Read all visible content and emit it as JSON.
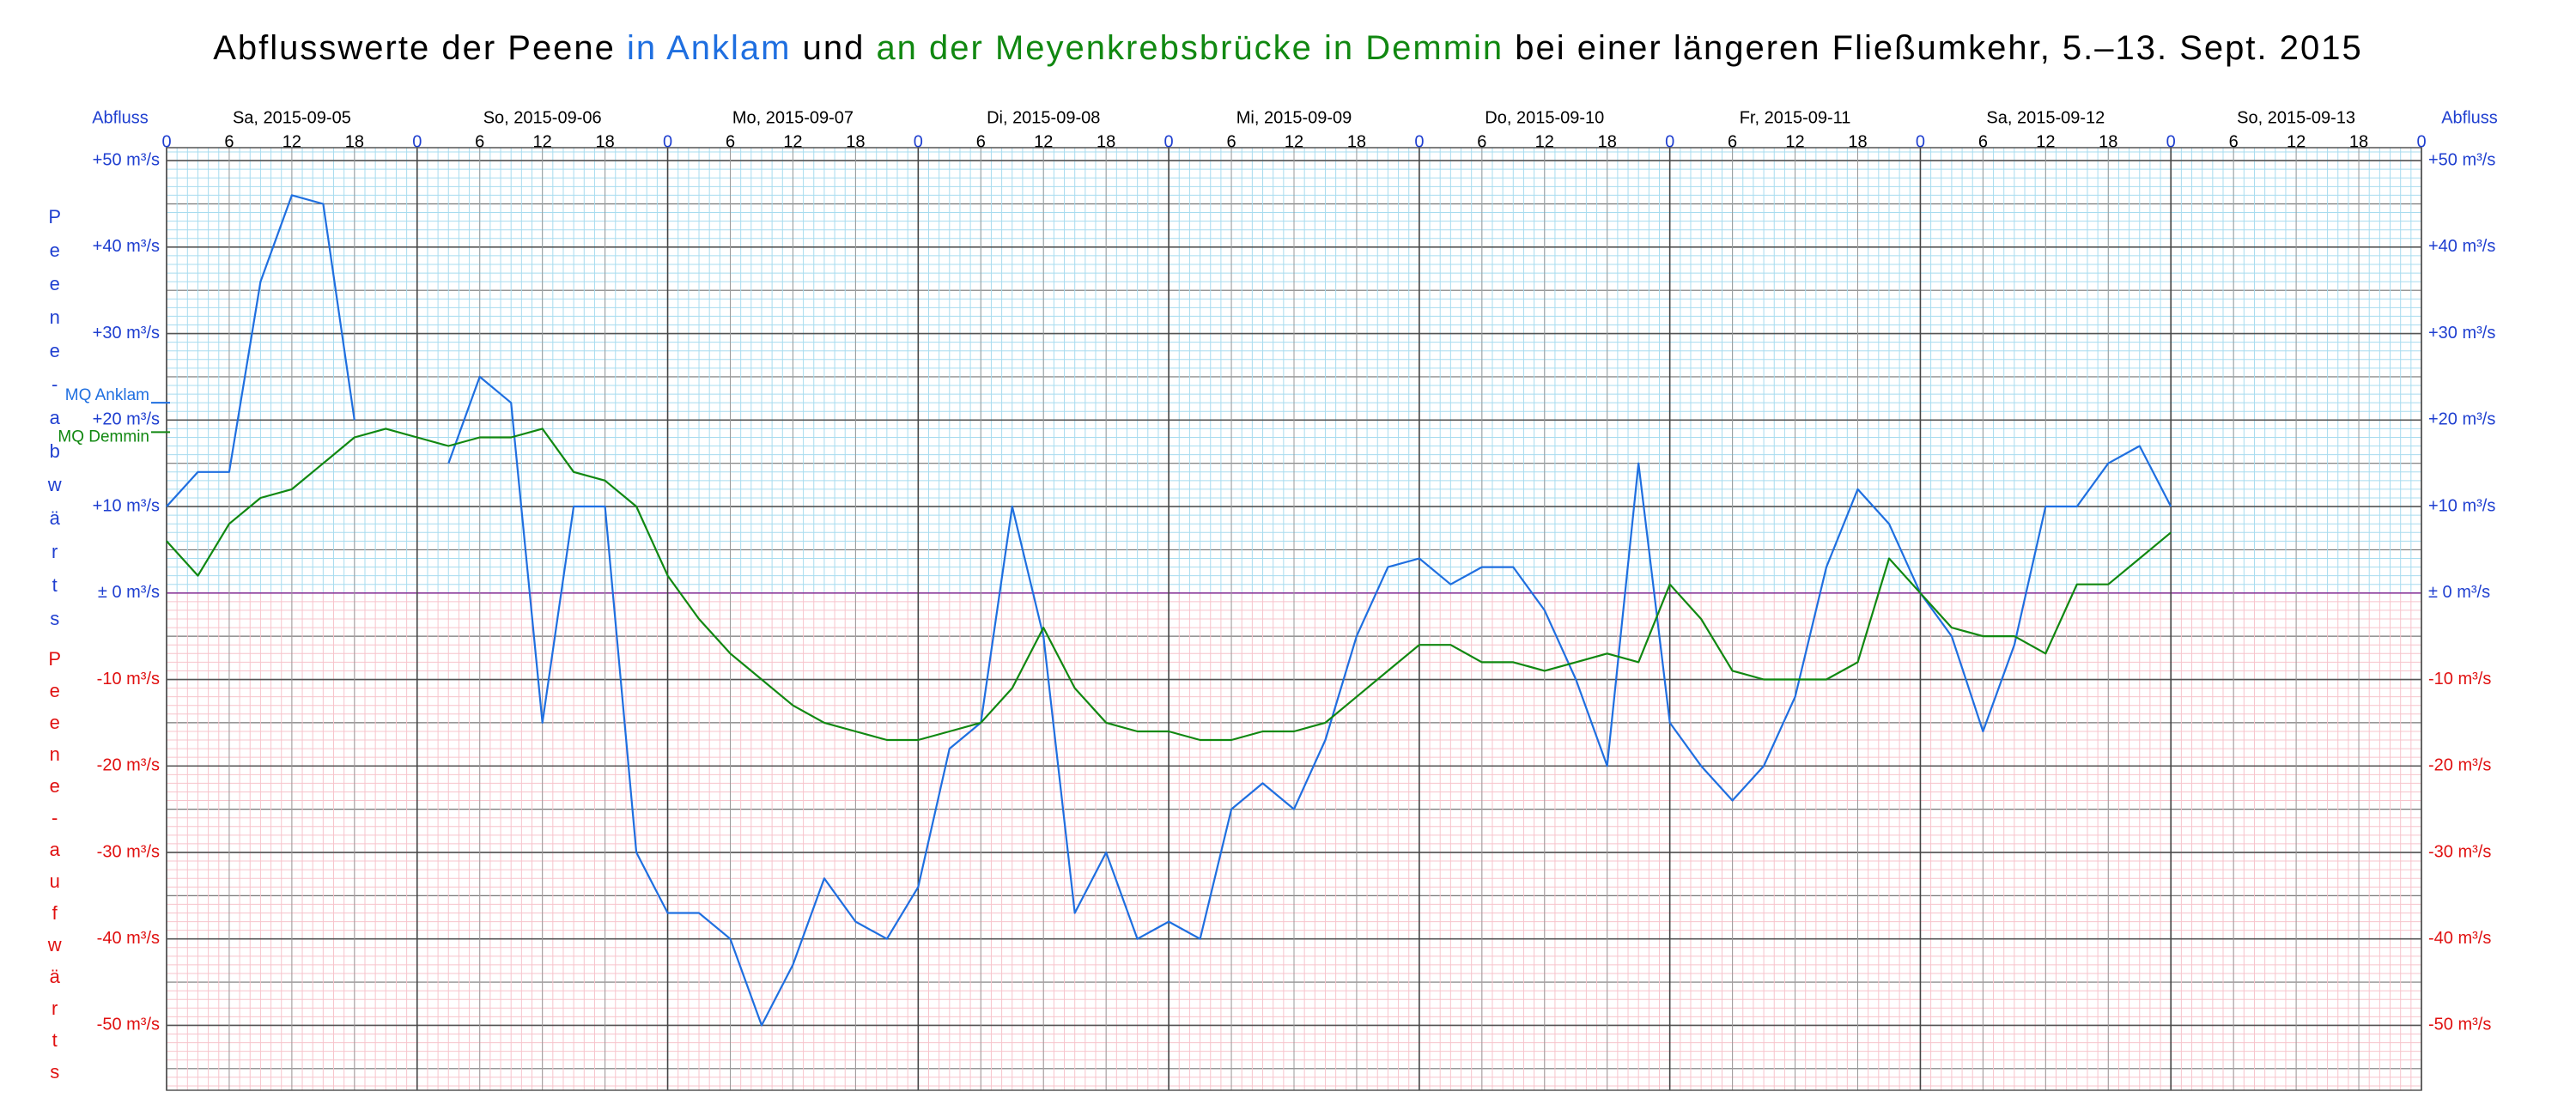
{
  "chart_data": {
    "type": "line",
    "title": [
      {
        "text": "Abflusswerte der Peene ",
        "color": "#000000"
      },
      {
        "text": "in Anklam",
        "color": "#1f6fe0"
      },
      {
        "text": " und ",
        "color": "#000000"
      },
      {
        "text": "an der Meyenkrebsbrücke in Demmin",
        "color": "#118811"
      },
      {
        "text": " bei einer längeren Fließumkehr, 5.–13. Sept. 2015",
        "color": "#000000"
      }
    ],
    "y_axis_label": "Abfluss",
    "upper_label": "Peene-abwärts",
    "lower_label": "Peene-aufwärts",
    "day_labels": [
      "Sa, 2015-09-05",
      "So, 2015-09-06",
      "Mo, 2015-09-07",
      "Di, 2015-09-08",
      "Mi, 2015-09-09",
      "Do, 2015-09-10",
      "Fr, 2015-09-11",
      "Sa, 2015-09-12",
      "So, 2015-09-13"
    ],
    "xlim": [
      0,
      216
    ],
    "xticks": [
      0,
      6,
      12,
      18,
      {
        "value": 24,
        "label": "0"
      },
      {
        "value": 30,
        "label": "6"
      },
      {
        "value": 36,
        "label": "12"
      },
      {
        "value": 42,
        "label": "18"
      },
      {
        "value": 48,
        "label": "0"
      },
      {
        "value": 54,
        "label": "6"
      },
      {
        "value": 60,
        "label": "12"
      },
      {
        "value": 66,
        "label": "18"
      },
      {
        "value": 72,
        "label": "0"
      },
      {
        "value": 78,
        "label": "6"
      },
      {
        "value": 84,
        "label": "12"
      },
      {
        "value": 90,
        "label": "18"
      },
      {
        "value": 96,
        "label": "0"
      },
      {
        "value": 102,
        "label": "6"
      },
      {
        "value": 108,
        "label": "12"
      },
      {
        "value": 114,
        "label": "18"
      },
      {
        "value": 120,
        "label": "0"
      },
      {
        "value": 126,
        "label": "6"
      },
      {
        "value": 132,
        "label": "12"
      },
      {
        "value": 138,
        "label": "18"
      },
      {
        "value": 144,
        "label": "0"
      },
      {
        "value": 150,
        "label": "6"
      },
      {
        "value": 156,
        "label": "12"
      },
      {
        "value": 162,
        "label": "18"
      },
      {
        "value": 168,
        "label": "0"
      },
      {
        "value": 174,
        "label": "6"
      },
      {
        "value": 180,
        "label": "12"
      },
      {
        "value": 186,
        "label": "18"
      },
      {
        "value": 192,
        "label": "0"
      },
      {
        "value": 198,
        "label": "6"
      },
      {
        "value": 204,
        "label": "12"
      },
      {
        "value": 210,
        "label": "18"
      },
      {
        "value": 216,
        "label": "0"
      }
    ],
    "ylim": [
      -57.5,
      51.5
    ],
    "yticks": [
      {
        "value": 50,
        "label": "+50 m³/s"
      },
      {
        "value": 40,
        "label": "+40 m³/s"
      },
      {
        "value": 30,
        "label": "+30 m³/s"
      },
      {
        "value": 20,
        "label": "+20 m³/s"
      },
      {
        "value": 10,
        "label": "+10 m³/s"
      },
      {
        "value": 0,
        "label": "± 0 m³/s"
      },
      {
        "value": -10,
        "label": "-10 m³/s"
      },
      {
        "value": -20,
        "label": "-20 m³/s"
      },
      {
        "value": -30,
        "label": "-30 m³/s"
      },
      {
        "value": -40,
        "label": "-40 m³/s"
      },
      {
        "value": -50,
        "label": "-50 m³/s"
      }
    ],
    "reference_lines": [
      {
        "label": "MQ Anklam",
        "value": 22,
        "color": "#1f6fe0"
      },
      {
        "label": "MQ Demmin",
        "value": 18.6,
        "color": "#118811"
      }
    ],
    "grid": true,
    "x": [
      0,
      3,
      6,
      9,
      12,
      15,
      18,
      21,
      24,
      27,
      30,
      33,
      36,
      39,
      42,
      45,
      48,
      51,
      54,
      57,
      60,
      63,
      66,
      69,
      72,
      75,
      78,
      81,
      84,
      87,
      90,
      93,
      96,
      99,
      102,
      105,
      108,
      111,
      114,
      117,
      120,
      123,
      126,
      129,
      132,
      135,
      138,
      141,
      144,
      147,
      150,
      153,
      156,
      159,
      162,
      165,
      168,
      171,
      174,
      177,
      180,
      183,
      186,
      189,
      192
    ],
    "series": [
      {
        "name": "Anklam",
        "color": "#1f6fe0",
        "values": [
          10,
          14,
          14,
          36,
          46,
          45,
          20,
          null,
          null,
          15,
          25,
          22,
          -15,
          10,
          10,
          -30,
          -37,
          -37,
          -40,
          -50,
          -43,
          -33,
          -38,
          -40,
          -34,
          -18,
          -15,
          10,
          -5,
          -37,
          -30,
          -40,
          -38,
          -40,
          -25,
          -22,
          -25,
          -17,
          -5,
          3,
          4,
          1,
          3,
          3,
          -2,
          -10,
          -20,
          15,
          -15,
          -20,
          -24,
          -20,
          -12,
          3,
          12,
          8,
          0,
          -5,
          -16,
          -6,
          10,
          10,
          15,
          17,
          10
        ]
      },
      {
        "name": "Demmin",
        "color": "#118811",
        "values": [
          6,
          2,
          8,
          11,
          12,
          15,
          18,
          19,
          18,
          17,
          18,
          18,
          19,
          14,
          13,
          10,
          2,
          -3,
          -7,
          -10,
          -13,
          -15,
          -16,
          -17,
          -17,
          -16,
          -15,
          -11,
          -4,
          -11,
          -15,
          -16,
          -16,
          -17,
          -17,
          -16,
          -16,
          -15,
          -12,
          -9,
          -6,
          -6,
          -8,
          -8,
          -9,
          -8,
          -7,
          -8,
          1,
          -3,
          -9,
          -10,
          -10,
          -10,
          -8,
          4,
          0,
          -4,
          -5,
          -5,
          -7,
          1,
          1,
          4,
          7
        ]
      }
    ]
  }
}
